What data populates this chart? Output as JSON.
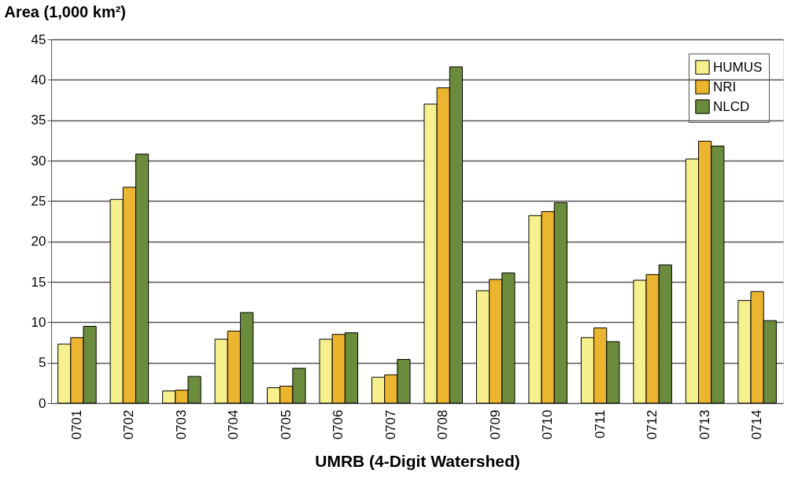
{
  "chart_data": {
    "type": "bar",
    "ylabel": "Area (1,000 km²)",
    "xlabel": "UMRB (4-Digit Watershed)",
    "categories": [
      "0701",
      "0702",
      "0703",
      "0704",
      "0705",
      "0706",
      "0707",
      "0708",
      "0709",
      "0710",
      "0711",
      "0712",
      "0713",
      "0714"
    ],
    "series": [
      {
        "name": "HUMUS",
        "color": "#f7f08f",
        "values": [
          7.3,
          25.2,
          1.5,
          7.9,
          1.9,
          7.9,
          3.2,
          37.0,
          13.9,
          23.2,
          8.1,
          15.2,
          30.2,
          12.7
        ]
      },
      {
        "name": "NRI",
        "color": "#ecb52f",
        "values": [
          8.1,
          26.7,
          1.6,
          8.9,
          2.1,
          8.5,
          3.5,
          39.0,
          15.3,
          23.7,
          9.3,
          15.9,
          32.4,
          13.8
        ]
      },
      {
        "name": "NLCD",
        "color": "#6b8c3c",
        "values": [
          9.5,
          30.8,
          3.3,
          11.2,
          4.3,
          8.7,
          5.4,
          41.6,
          16.1,
          24.8,
          7.6,
          17.1,
          31.8,
          10.2
        ]
      }
    ],
    "ylim": [
      0,
      45
    ],
    "yticks": [
      0,
      5,
      10,
      15,
      20,
      25,
      30,
      35,
      40,
      45
    ],
    "grid": "y",
    "legend": "top right"
  }
}
